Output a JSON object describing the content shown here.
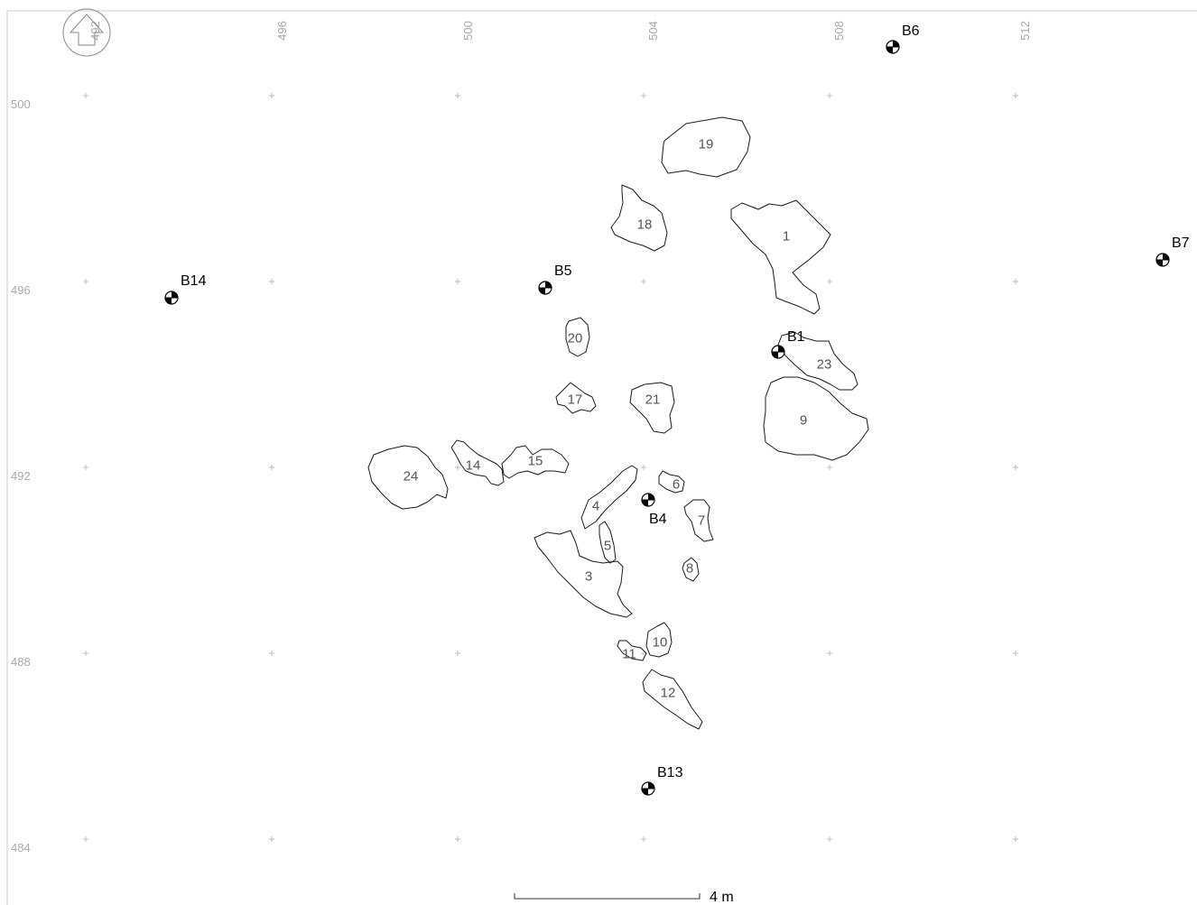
{
  "grid": {
    "easting_labels": [
      "492",
      "496",
      "500",
      "504",
      "508",
      "512"
    ],
    "northing_labels": [
      "500",
      "496",
      "492",
      "488",
      "484"
    ]
  },
  "north_arrow": {
    "icon": "north-arrow-icon"
  },
  "features": [
    {
      "id": "1",
      "label": "1"
    },
    {
      "id": "3",
      "label": "3"
    },
    {
      "id": "4",
      "label": "4"
    },
    {
      "id": "5",
      "label": "5"
    },
    {
      "id": "6",
      "label": "6"
    },
    {
      "id": "7",
      "label": "7"
    },
    {
      "id": "8",
      "label": "8"
    },
    {
      "id": "9",
      "label": "9"
    },
    {
      "id": "10",
      "label": "10"
    },
    {
      "id": "11",
      "label": "11"
    },
    {
      "id": "12",
      "label": "12"
    },
    {
      "id": "14",
      "label": "14"
    },
    {
      "id": "15",
      "label": "15"
    },
    {
      "id": "17",
      "label": "17"
    },
    {
      "id": "18",
      "label": "18"
    },
    {
      "id": "19",
      "label": "19"
    },
    {
      "id": "20",
      "label": "20"
    },
    {
      "id": "21",
      "label": "21"
    },
    {
      "id": "23",
      "label": "23"
    },
    {
      "id": "24",
      "label": "24"
    }
  ],
  "benchmarks": [
    {
      "id": "B1",
      "label": "B1"
    },
    {
      "id": "B4",
      "label": "B4"
    },
    {
      "id": "B5",
      "label": "B5"
    },
    {
      "id": "B6",
      "label": "B6"
    },
    {
      "id": "B7",
      "label": "B7"
    },
    {
      "id": "B13",
      "label": "B13"
    },
    {
      "id": "B14",
      "label": "B14"
    }
  ],
  "scale_bar": {
    "label": "4 m"
  }
}
